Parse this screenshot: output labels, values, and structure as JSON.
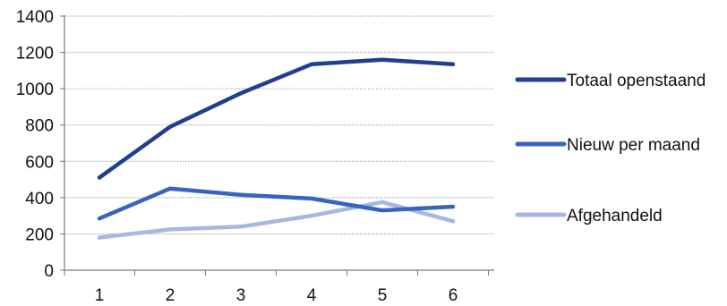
{
  "chart_data": {
    "type": "line",
    "x": [
      1,
      2,
      3,
      4,
      5,
      6
    ],
    "categories": [
      "1",
      "2",
      "3",
      "4",
      "5",
      "6"
    ],
    "ylim": [
      0,
      1400
    ],
    "yticks": [
      0,
      200,
      400,
      600,
      800,
      1000,
      1200,
      1400
    ],
    "grid": true,
    "legend_position": "right",
    "series": [
      {
        "name": "Totaal openstaand",
        "color": "#1f3f8f",
        "values": [
          510,
          790,
          975,
          1135,
          1160,
          1135
        ]
      },
      {
        "name": "Nieuw per maand",
        "color": "#3a63bf",
        "values": [
          285,
          450,
          415,
          395,
          330,
          350
        ]
      },
      {
        "name": "Afgehandeld",
        "color": "#a6b8e2",
        "values": [
          180,
          225,
          240,
          300,
          375,
          270
        ]
      }
    ]
  }
}
